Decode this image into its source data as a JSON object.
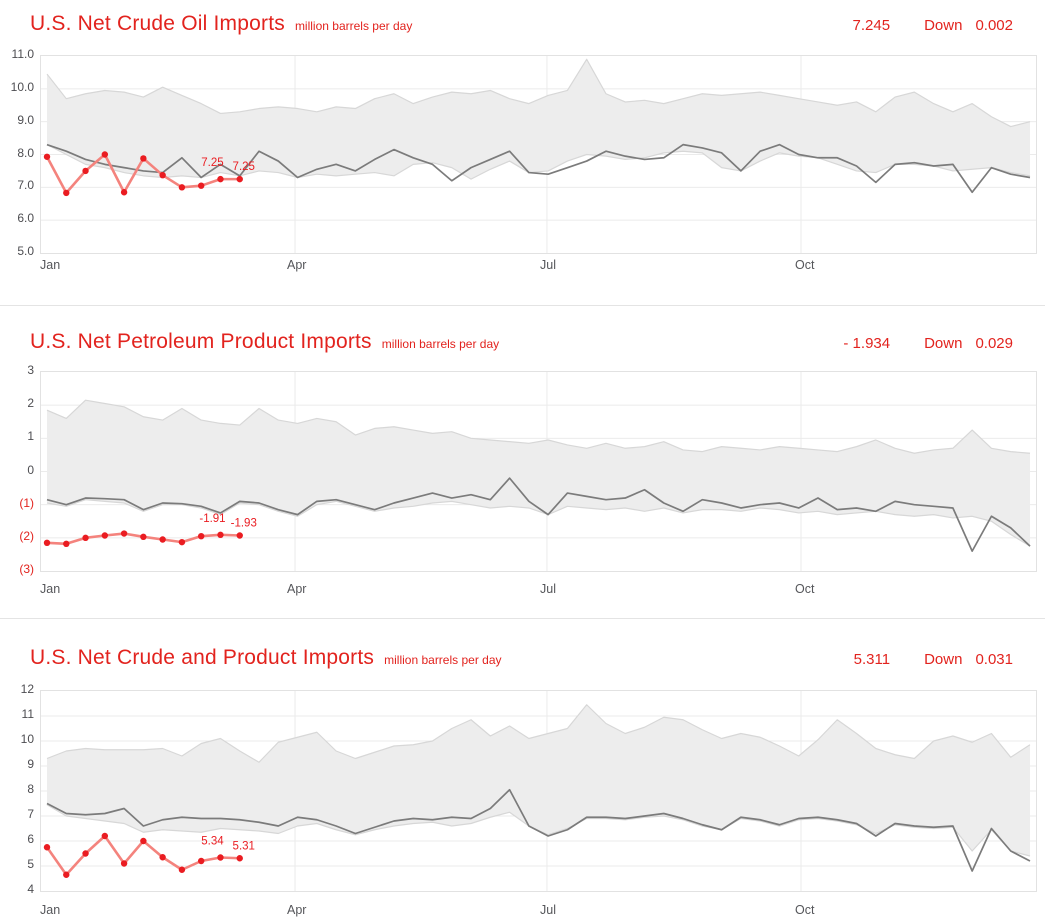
{
  "colors": {
    "title_red": "#e2231e",
    "line_red": "#f4837d",
    "dot_red": "#ea1c21",
    "gray_line": "#7b7b7b",
    "band_fill": "#ededed",
    "band_edge": "#d7d7d7",
    "grid": "#ebebeb",
    "axis_text": "#4d4d51",
    "border": "#e2e2e2"
  },
  "x_axis": {
    "labels": [
      "Jan",
      "Apr",
      "Jul",
      "Oct"
    ]
  },
  "chart_data": [
    {
      "type": "line",
      "title": "U.S. Net Crude Oil Imports",
      "unit": "million barrels per day",
      "current_value": "7.245",
      "direction": "Down",
      "change": "0.002",
      "weeks": 52,
      "ylim": [
        5,
        11
      ],
      "yticks": [
        {
          "label": "11.0",
          "value": 11
        },
        {
          "label": "10.0",
          "value": 10
        },
        {
          "label": "9.0",
          "value": 9
        },
        {
          "label": "8.0",
          "value": 8
        },
        {
          "label": "7.0",
          "value": 7
        },
        {
          "label": "6.0",
          "value": 6
        },
        {
          "label": "5.0",
          "value": 5
        }
      ],
      "x_tick_labels": [
        "Jan",
        "Apr",
        "Jul",
        "Oct"
      ],
      "series": [
        {
          "name": "range-upper",
          "values": [
            10.45,
            9.7,
            9.85,
            9.95,
            9.9,
            9.75,
            10.05,
            9.8,
            9.55,
            9.25,
            9.3,
            9.4,
            9.45,
            9.4,
            9.3,
            9.45,
            9.4,
            9.7,
            9.85,
            9.55,
            9.75,
            9.9,
            9.85,
            9.95,
            9.7,
            9.55,
            9.8,
            9.95,
            10.9,
            9.85,
            9.6,
            9.65,
            9.55,
            9.7,
            9.85,
            9.8,
            9.85,
            9.9,
            9.8,
            9.7,
            9.6,
            9.5,
            9.6,
            9.3,
            9.75,
            9.9,
            9.55,
            9.3,
            9.55,
            9.15,
            8.85,
            9.0
          ]
        },
        {
          "name": "range-lower",
          "values": [
            8.3,
            8.0,
            7.7,
            7.6,
            7.45,
            7.35,
            7.3,
            7.35,
            7.3,
            7.45,
            7.35,
            7.5,
            7.45,
            7.3,
            7.4,
            7.35,
            7.4,
            7.45,
            7.35,
            7.7,
            7.75,
            7.6,
            7.25,
            7.55,
            7.8,
            7.45,
            7.5,
            7.8,
            8.0,
            7.95,
            7.85,
            7.9,
            8.05,
            8.1,
            8.05,
            7.6,
            7.5,
            7.8,
            8.05,
            7.95,
            7.9,
            7.7,
            7.5,
            7.45,
            7.7,
            7.7,
            7.65,
            7.5,
            7.55,
            7.6,
            7.45,
            7.35
          ]
        },
        {
          "name": "reference-line",
          "values": [
            8.3,
            8.1,
            7.85,
            7.7,
            7.6,
            7.5,
            7.45,
            7.9,
            7.3,
            7.7,
            7.35,
            8.1,
            7.8,
            7.3,
            7.55,
            7.7,
            7.5,
            7.85,
            8.15,
            7.9,
            7.7,
            7.2,
            7.6,
            7.85,
            8.1,
            7.45,
            7.4,
            7.6,
            7.8,
            8.1,
            7.95,
            7.85,
            7.9,
            8.3,
            8.2,
            8.05,
            7.5,
            8.1,
            8.3,
            8.0,
            7.9,
            7.9,
            7.65,
            7.15,
            7.7,
            7.75,
            7.65,
            7.7,
            6.85,
            7.6,
            7.4,
            7.3
          ]
        },
        {
          "name": "current-year",
          "values": [
            7.93,
            6.83,
            7.5,
            8.0,
            6.85,
            7.88,
            7.37,
            7.0,
            7.05,
            7.25,
            7.25
          ]
        }
      ],
      "annotations": [
        {
          "text": "7.25",
          "point": 9
        },
        {
          "text": "7.25",
          "point": 10
        }
      ]
    },
    {
      "type": "line",
      "title": "U.S. Net Petroleum Product Imports",
      "unit": "million barrels per day",
      "current_value": "- 1.934",
      "direction": "Down",
      "change": "0.029",
      "weeks": 52,
      "ylim": [
        -3,
        3
      ],
      "yticks": [
        {
          "label": "3",
          "value": 3
        },
        {
          "label": "2",
          "value": 2
        },
        {
          "label": "1",
          "value": 1
        },
        {
          "label": "0",
          "value": 0
        },
        {
          "label": "(1)",
          "value": -1
        },
        {
          "label": "(2)",
          "value": -2
        },
        {
          "label": "(3)",
          "value": -3
        }
      ],
      "x_tick_labels": [
        "Jan",
        "Apr",
        "Jul",
        "Oct"
      ],
      "series": [
        {
          "name": "range-upper",
          "values": [
            1.85,
            1.6,
            2.15,
            2.05,
            1.95,
            1.65,
            1.55,
            1.9,
            1.55,
            1.45,
            1.4,
            1.9,
            1.55,
            1.45,
            1.6,
            1.5,
            1.1,
            1.3,
            1.35,
            1.25,
            1.15,
            1.2,
            1.0,
            0.95,
            0.9,
            0.85,
            0.95,
            0.8,
            0.7,
            0.85,
            0.7,
            0.75,
            0.9,
            0.65,
            0.6,
            0.75,
            0.7,
            0.65,
            0.75,
            0.7,
            0.65,
            0.6,
            0.75,
            0.95,
            0.7,
            0.55,
            0.65,
            0.7,
            1.25,
            0.7,
            0.6,
            0.55
          ]
        },
        {
          "name": "range-lower",
          "values": [
            -0.95,
            -1.05,
            -0.85,
            -0.9,
            -0.95,
            -1.2,
            -1.0,
            -1.0,
            -1.1,
            -1.3,
            -0.95,
            -1.0,
            -1.2,
            -1.35,
            -1.0,
            -0.9,
            -1.05,
            -1.2,
            -1.1,
            -1.05,
            -0.95,
            -0.9,
            -1.0,
            -1.1,
            -1.05,
            -1.1,
            -1.3,
            -1.05,
            -1.1,
            -1.15,
            -1.1,
            -1.2,
            -1.1,
            -1.25,
            -1.15,
            -1.15,
            -1.2,
            -1.1,
            -1.15,
            -1.25,
            -1.2,
            -1.3,
            -1.25,
            -1.2,
            -1.3,
            -1.35,
            -1.3,
            -1.4,
            -1.35,
            -1.5,
            -1.9,
            -2.25
          ]
        },
        {
          "name": "reference-line",
          "values": [
            -0.85,
            -1.0,
            -0.8,
            -0.82,
            -0.85,
            -1.15,
            -0.95,
            -0.97,
            -1.05,
            -1.25,
            -0.9,
            -0.95,
            -1.15,
            -1.3,
            -0.9,
            -0.85,
            -1.0,
            -1.15,
            -0.95,
            -0.8,
            -0.65,
            -0.8,
            -0.7,
            -0.85,
            -0.2,
            -0.9,
            -1.3,
            -0.65,
            -0.75,
            -0.85,
            -0.8,
            -0.55,
            -0.95,
            -1.2,
            -0.85,
            -0.95,
            -1.1,
            -1.0,
            -0.95,
            -1.1,
            -0.8,
            -1.15,
            -1.1,
            -1.2,
            -0.9,
            -1.0,
            -1.05,
            -1.1,
            -2.4,
            -1.35,
            -1.7,
            -2.25
          ]
        },
        {
          "name": "current-year",
          "values": [
            -2.15,
            -2.18,
            -2.0,
            -1.93,
            -1.87,
            -1.97,
            -2.05,
            -2.13,
            -1.95,
            -1.91,
            -1.93
          ]
        }
      ],
      "annotations": [
        {
          "text": "-1.91",
          "point": 9
        },
        {
          "text": "-1.93",
          "point": 10
        }
      ]
    },
    {
      "type": "line",
      "title": "U.S. Net Crude and Product Imports",
      "unit": "million barrels per day",
      "current_value": "5.311",
      "direction": "Down",
      "change": "0.031",
      "weeks": 52,
      "ylim": [
        4,
        12
      ],
      "yticks": [
        {
          "label": "12",
          "value": 12
        },
        {
          "label": "11",
          "value": 11
        },
        {
          "label": "10",
          "value": 10
        },
        {
          "label": "9",
          "value": 9
        },
        {
          "label": "8",
          "value": 8
        },
        {
          "label": "7",
          "value": 7
        },
        {
          "label": "6",
          "value": 6
        },
        {
          "label": "5",
          "value": 5
        },
        {
          "label": "4",
          "value": 4
        }
      ],
      "x_tick_labels": [
        "Jan",
        "Apr",
        "Jul",
        "Oct"
      ],
      "series": [
        {
          "name": "range-upper",
          "values": [
            9.3,
            9.6,
            9.7,
            9.65,
            9.65,
            9.65,
            9.7,
            9.4,
            9.9,
            10.1,
            9.6,
            9.15,
            9.95,
            10.15,
            10.35,
            9.6,
            9.3,
            9.55,
            9.8,
            9.85,
            10.0,
            10.5,
            10.85,
            10.2,
            10.6,
            10.1,
            10.3,
            10.5,
            11.45,
            10.7,
            10.3,
            10.55,
            10.95,
            10.85,
            10.45,
            10.1,
            10.3,
            10.15,
            9.8,
            9.4,
            10.05,
            10.85,
            10.3,
            9.7,
            9.45,
            9.3,
            10.0,
            10.2,
            9.95,
            10.3,
            9.35,
            9.85
          ]
        },
        {
          "name": "range-lower",
          "values": [
            7.45,
            7.0,
            6.9,
            6.8,
            6.7,
            6.35,
            6.45,
            6.4,
            6.35,
            6.5,
            6.45,
            6.4,
            6.3,
            6.6,
            6.7,
            6.45,
            6.25,
            6.45,
            6.6,
            6.7,
            6.75,
            6.6,
            6.7,
            6.95,
            7.15,
            6.6,
            6.25,
            6.5,
            6.9,
            6.9,
            6.85,
            6.95,
            7.0,
            6.85,
            6.6,
            6.45,
            6.9,
            6.8,
            6.6,
            6.85,
            6.9,
            6.8,
            6.65,
            6.3,
            6.65,
            6.55,
            6.5,
            6.55,
            5.6,
            6.45,
            5.6,
            5.4
          ]
        },
        {
          "name": "reference-line",
          "values": [
            7.5,
            7.1,
            7.05,
            7.1,
            7.3,
            6.6,
            6.85,
            6.95,
            6.9,
            6.9,
            6.85,
            6.75,
            6.6,
            6.95,
            6.85,
            6.6,
            6.3,
            6.55,
            6.8,
            6.9,
            6.85,
            6.95,
            6.9,
            7.3,
            8.05,
            6.6,
            6.2,
            6.45,
            6.95,
            6.95,
            6.9,
            7.0,
            7.1,
            6.9,
            6.65,
            6.45,
            6.95,
            6.85,
            6.65,
            6.9,
            6.95,
            6.85,
            6.7,
            6.2,
            6.7,
            6.6,
            6.55,
            6.6,
            4.8,
            6.5,
            5.6,
            5.2
          ]
        },
        {
          "name": "current-year",
          "values": [
            5.75,
            4.65,
            5.5,
            6.2,
            5.1,
            6.0,
            5.35,
            4.85,
            5.2,
            5.34,
            5.31
          ]
        }
      ],
      "annotations": [
        {
          "text": "5.34",
          "point": 9
        },
        {
          "text": "5.31",
          "point": 10
        }
      ]
    }
  ]
}
